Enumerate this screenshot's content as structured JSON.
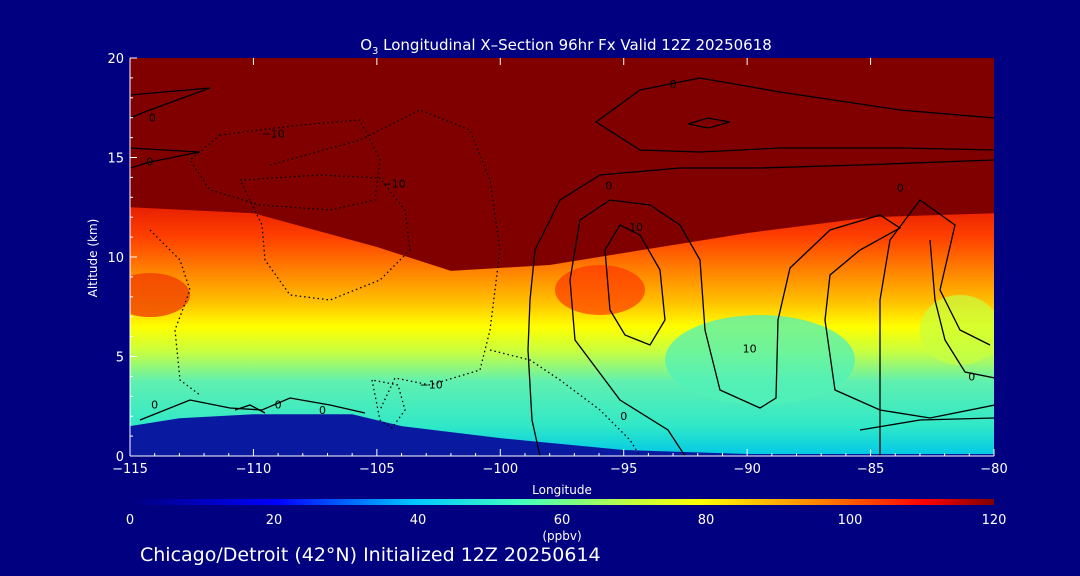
{
  "chart_data": {
    "type": "heatmap",
    "title_prefix": "O",
    "title_subscript": "3",
    "title_rest": " Longitudinal X–Section 96hr  Fx Valid 12Z 20250618",
    "xlabel": "Longitude",
    "ylabel": "Altitude (km)",
    "xlim": [
      -115,
      -80
    ],
    "ylim": [
      0,
      20
    ],
    "x_ticks": [
      -115,
      -110,
      -105,
      -100,
      -95,
      -90,
      -85,
      -80
    ],
    "x_tick_labels": [
      "−115",
      "−110",
      "−105",
      "−100",
      "−95",
      "−90",
      "−85",
      "−80"
    ],
    "y_ticks": [
      0,
      5,
      10,
      15,
      20
    ],
    "y_tick_labels": [
      "0",
      "5",
      "10",
      "15",
      "20"
    ],
    "colorbar": {
      "label": "(ppbv)",
      "min": 0,
      "max": 120,
      "ticks": [
        0,
        20,
        40,
        60,
        80,
        100,
        120
      ],
      "tick_labels": [
        "0",
        "20",
        "40",
        "60",
        "80",
        "100",
        "120"
      ]
    },
    "field_units": "ppbv",
    "tropopause_height_km": [
      {
        "lon": -115,
        "km": 12.5
      },
      {
        "lon": -110,
        "km": 12.2
      },
      {
        "lon": -105,
        "km": 10.5
      },
      {
        "lon": -102,
        "km": 9.3
      },
      {
        "lon": -98,
        "km": 9.6
      },
      {
        "lon": -95,
        "km": 10.2
      },
      {
        "lon": -90,
        "km": 11.2
      },
      {
        "lon": -85,
        "km": 12.0
      },
      {
        "lon": -80,
        "km": 12.2
      }
    ],
    "terrain_height_km": [
      {
        "lon": -115,
        "km": 1.5
      },
      {
        "lon": -113,
        "km": 1.9
      },
      {
        "lon": -110,
        "km": 2.1
      },
      {
        "lon": -106,
        "km": 2.1
      },
      {
        "lon": -104,
        "km": 1.5
      },
      {
        "lon": -100,
        "km": 0.9
      },
      {
        "lon": -95,
        "km": 0.3
      },
      {
        "lon": -90,
        "km": 0.1
      },
      {
        "lon": -80,
        "km": 0.1
      }
    ],
    "contour_labels": [
      {
        "text": "0",
        "lon": -114.1,
        "km": 17.0
      },
      {
        "text": "0",
        "lon": -114.2,
        "km": 14.8
      },
      {
        "text": "−10",
        "lon": -109.2,
        "km": 16.2
      },
      {
        "text": "−10",
        "lon": -104.3,
        "km": 13.7
      },
      {
        "text": "0",
        "lon": -93.0,
        "km": 18.7
      },
      {
        "text": "0",
        "lon": -95.6,
        "km": 13.6
      },
      {
        "text": "10",
        "lon": -94.5,
        "km": 11.5
      },
      {
        "text": "0",
        "lon": -83.8,
        "km": 13.5
      },
      {
        "text": "10",
        "lon": -89.9,
        "km": 5.4
      },
      {
        "text": "−10",
        "lon": -102.8,
        "km": 3.6
      },
      {
        "text": "0",
        "lon": -95.0,
        "km": 2.0
      },
      {
        "text": "0",
        "lon": -80.9,
        "km": 4.0
      },
      {
        "text": "0",
        "lon": -109.0,
        "km": 2.6
      },
      {
        "text": "0",
        "lon": -107.2,
        "km": 2.3
      },
      {
        "text": "0",
        "lon": -114.0,
        "km": 2.6
      }
    ]
  },
  "colors": {
    "background": "#000080",
    "stratosphere": "#800000",
    "terrain": "#0a1aa0"
  },
  "footer": {
    "station_text": "Chicago/Detroit (42°N) Initialized 12Z 20250614"
  }
}
